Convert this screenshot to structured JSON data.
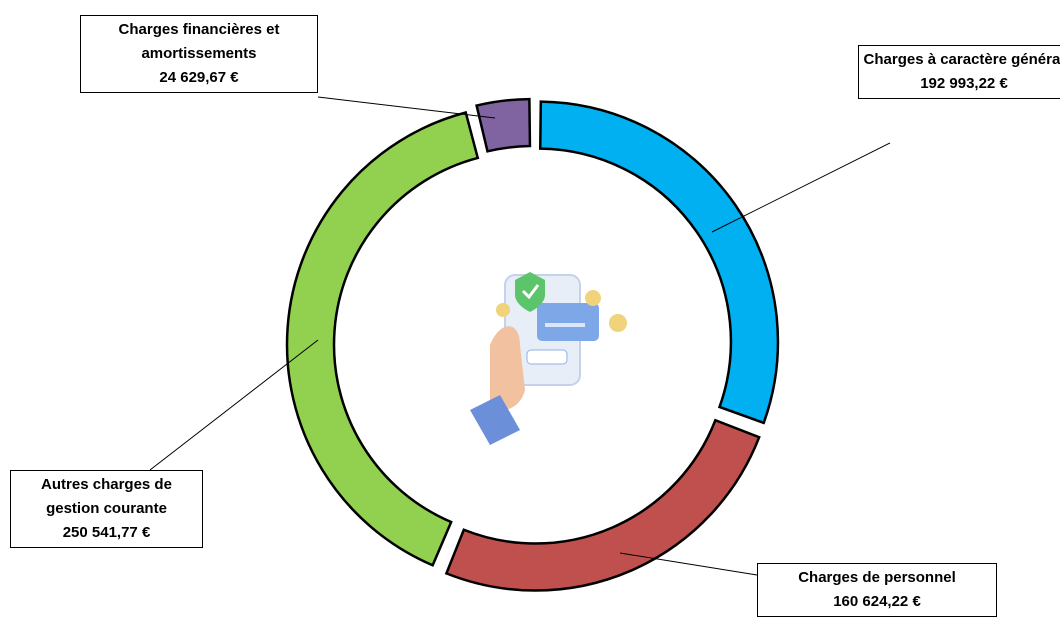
{
  "chart_data": {
    "type": "donut",
    "categories": [
      "Charges à caractère général",
      "Charges de personnel",
      "Autres charges de gestion courante",
      "Charges financières et amortissements"
    ],
    "values": [
      192993.22,
      160624.22,
      250541.77,
      24629.67
    ],
    "value_labels": [
      "192 993,22 €",
      "160 624,22 €",
      "250 541,77 €",
      "24 629,67 €"
    ],
    "colors": [
      "#00b0f0",
      "#c0504d",
      "#92d050",
      "#8064a2"
    ]
  }
}
